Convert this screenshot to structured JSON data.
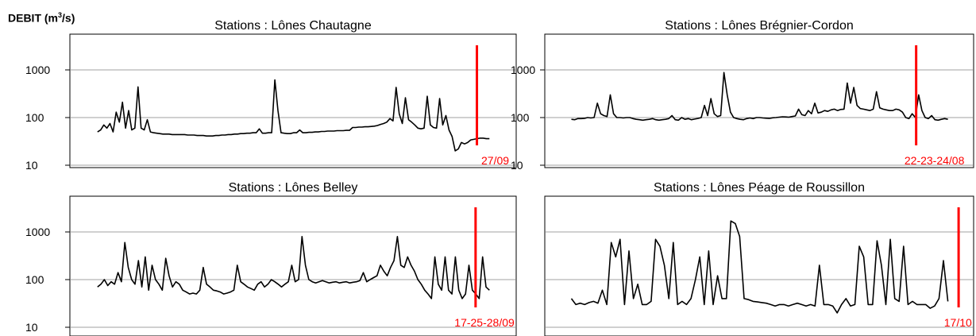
{
  "header": {
    "ylabel_prefix": "DEBIT (m",
    "ylabel_sup": "3",
    "ylabel_suffix": "/s)"
  },
  "colors": {
    "series": "#000000",
    "event": "#ff0000",
    "grid": "#808080"
  },
  "chart_data": [
    {
      "type": "line",
      "title": "Stations : Lônes Chautagne",
      "yscale": "log",
      "ylim": [
        10,
        1000
      ],
      "yticks": [
        "1000",
        "100",
        "10"
      ],
      "event_label": "27/09",
      "event_x": 0.912,
      "series": [
        {
          "values": [
            50,
            55,
            70,
            60,
            75,
            50,
            130,
            80,
            210,
            60,
            140,
            55,
            60,
            440,
            60,
            55,
            90,
            50,
            48,
            47,
            46,
            45,
            45,
            45,
            44,
            44,
            44,
            44,
            44,
            43,
            43,
            43,
            42,
            42,
            42,
            41,
            41,
            41,
            42,
            42,
            43,
            43,
            44,
            44,
            45,
            45,
            46,
            46,
            47,
            47,
            48,
            48,
            58,
            47,
            47,
            48,
            48,
            620,
            140,
            48,
            47,
            46,
            46,
            48,
            48,
            55,
            48,
            48,
            49,
            49,
            50,
            50,
            51,
            51,
            52,
            52,
            52,
            53,
            53,
            53,
            54,
            54,
            62,
            62,
            63,
            63,
            64,
            64,
            65,
            66,
            68,
            72,
            75,
            80,
            95,
            85,
            430,
            120,
            75,
            260,
            90,
            80,
            70,
            60,
            58,
            60,
            280,
            70,
            62,
            60,
            250,
            70,
            110,
            55,
            40,
            20,
            22,
            30,
            28,
            30,
            34,
            35,
            36,
            37,
            37,
            36,
            36
          ]
        }
      ]
    },
    {
      "type": "line",
      "title": "Stations : Lônes Brégnier-Cordon",
      "yscale": "log",
      "ylim": [
        10,
        1000
      ],
      "yticks": [
        "1000",
        "100",
        "10"
      ],
      "event_label": "22-23-24/08",
      "event_x": 0.866,
      "series": [
        {
          "values": [
            92,
            90,
            95,
            95,
            96,
            100,
            98,
            100,
            200,
            120,
            110,
            105,
            300,
            120,
            100,
            100,
            98,
            100,
            100,
            95,
            92,
            90,
            88,
            90,
            92,
            95,
            90,
            88,
            90,
            92,
            95,
            110,
            90,
            88,
            100,
            92,
            95,
            90,
            93,
            96,
            100,
            180,
            110,
            250,
            120,
            105,
            110,
            880,
            300,
            130,
            100,
            95,
            92,
            90,
            95,
            98,
            95,
            100,
            100,
            98,
            97,
            96,
            99,
            100,
            102,
            104,
            103,
            102,
            105,
            108,
            150,
            115,
            110,
            140,
            120,
            200,
            125,
            130,
            140,
            135,
            145,
            150,
            140,
            148,
            150,
            530,
            200,
            430,
            180,
            155,
            150,
            145,
            140,
            150,
            350,
            160,
            150,
            145,
            140,
            140,
            150,
            145,
            130,
            100,
            95,
            120,
            100,
            300,
            140,
            100,
            95,
            110,
            90,
            88,
            92,
            95,
            92
          ]
        }
      ]
    },
    {
      "type": "line",
      "title": "Stations : Lônes Belley",
      "yscale": "log",
      "ylim": [
        10,
        1000
      ],
      "yticks": [
        "1000",
        "100",
        "10"
      ],
      "event_label": "17-25-28/09",
      "event_x": 0.909,
      "series": [
        {
          "values": [
            70,
            80,
            100,
            75,
            90,
            80,
            140,
            90,
            600,
            180,
            100,
            80,
            250,
            70,
            300,
            60,
            200,
            100,
            80,
            60,
            280,
            120,
            70,
            90,
            80,
            60,
            55,
            50,
            52,
            50,
            60,
            180,
            80,
            70,
            60,
            58,
            55,
            50,
            52,
            55,
            60,
            200,
            90,
            80,
            70,
            65,
            60,
            80,
            90,
            70,
            80,
            100,
            90,
            80,
            70,
            80,
            90,
            200,
            90,
            100,
            800,
            200,
            100,
            90,
            85,
            90,
            95,
            90,
            85,
            88,
            90,
            85,
            88,
            90,
            85,
            88,
            90,
            95,
            140,
            90,
            100,
            110,
            120,
            200,
            150,
            120,
            180,
            250,
            800,
            200,
            180,
            300,
            200,
            150,
            100,
            80,
            60,
            50,
            40,
            300,
            80,
            60,
            300,
            60,
            50,
            300,
            60,
            40,
            50,
            200,
            60,
            50,
            40,
            300,
            70,
            60
          ]
        }
      ]
    },
    {
      "type": "line",
      "title": "Stations : Lônes Péage de Roussillon",
      "yscale": "log",
      "ylim": [
        10,
        1000
      ],
      "yticks": [],
      "event_label": "17/10",
      "event_x": 0.965,
      "series": [
        {
          "values": [
            40,
            30,
            32,
            30,
            33,
            35,
            32,
            60,
            30,
            600,
            300,
            700,
            30,
            400,
            40,
            80,
            30,
            30,
            35,
            700,
            500,
            200,
            40,
            600,
            30,
            35,
            30,
            40,
            100,
            300,
            30,
            400,
            30,
            120,
            40,
            40,
            1700,
            1500,
            800,
            40,
            38,
            35,
            34,
            33,
            32,
            30,
            28,
            30,
            30,
            28,
            30,
            32,
            30,
            28,
            30,
            28,
            200,
            30,
            30,
            28,
            20,
            30,
            40,
            28,
            30,
            500,
            300,
            30,
            30,
            650,
            200,
            30,
            700,
            40,
            35,
            500,
            30,
            35,
            30,
            30,
            30,
            25,
            28,
            40,
            250,
            35
          ]
        }
      ]
    }
  ]
}
